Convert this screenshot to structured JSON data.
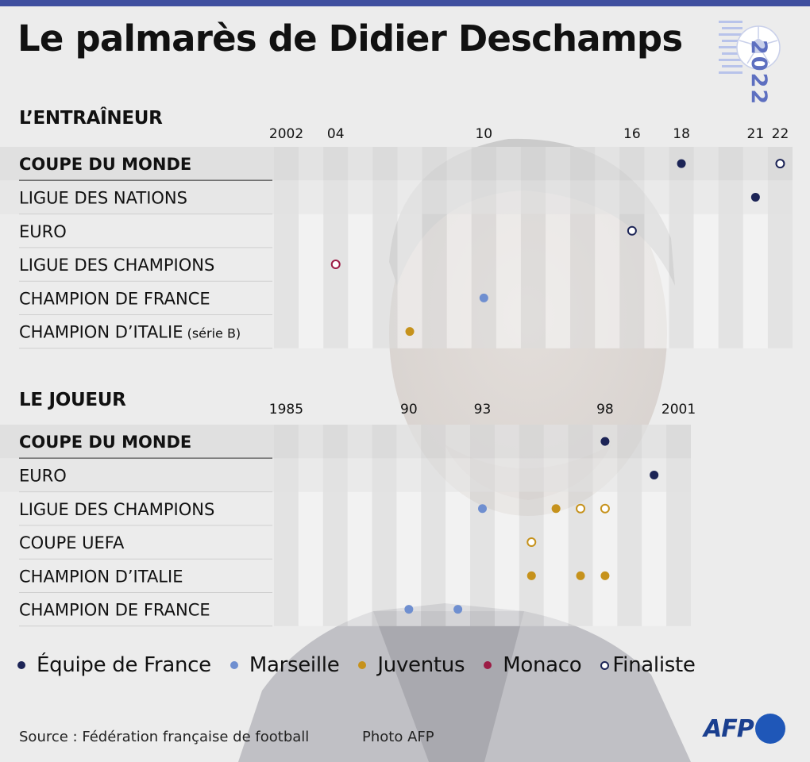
{
  "title": "Le palmarès de Didier Deschamps",
  "logo": {
    "year": "2022",
    "icon": "football-icon"
  },
  "colors": {
    "equipe_de_france": "#1c2456",
    "marseille": "#6f8fd0",
    "juventus": "#c6921c",
    "monaco": "#9c1c45",
    "finaliste_fill": "#ffffff"
  },
  "chart_data": [
    {
      "type": "scatter",
      "section": "L’ENTRAÎNEUR",
      "x_range": [
        2002,
        2022
      ],
      "tick_labels": [
        {
          "year": 2002,
          "label": "2002"
        },
        {
          "year": 2004,
          "label": "04"
        },
        {
          "year": 2010,
          "label": "10"
        },
        {
          "year": 2016,
          "label": "16"
        },
        {
          "year": 2018,
          "label": "18"
        },
        {
          "year": 2021,
          "label": "21"
        },
        {
          "year": 2022,
          "label": "22"
        }
      ],
      "rows": [
        {
          "label": "COUPE DU MONDE",
          "bold": true,
          "points": [
            {
              "year": 2018,
              "team": "equipe_de_france",
              "finaliste": false
            },
            {
              "year": 2022,
              "team": "equipe_de_france",
              "finaliste": true
            }
          ]
        },
        {
          "label": "LIGUE DES NATIONS",
          "points": [
            {
              "year": 2021,
              "team": "equipe_de_france",
              "finaliste": false
            }
          ]
        },
        {
          "label": "EURO",
          "points": [
            {
              "year": 2016,
              "team": "equipe_de_france",
              "finaliste": true
            }
          ]
        },
        {
          "label": "LIGUE DES CHAMPIONS",
          "points": [
            {
              "year": 2004,
              "team": "monaco",
              "finaliste": true
            }
          ]
        },
        {
          "label": "CHAMPION DE FRANCE",
          "points": [
            {
              "year": 2010,
              "team": "marseille",
              "finaliste": false
            }
          ]
        },
        {
          "label": "CHAMPION D’ITALIE",
          "note": "(série B)",
          "points": [
            {
              "year": 2007,
              "team": "juventus",
              "finaliste": false
            }
          ]
        }
      ]
    },
    {
      "type": "scatter",
      "section": "LE JOUEUR",
      "x_range": [
        1985,
        2001
      ],
      "tick_labels": [
        {
          "year": 1985,
          "label": "1985"
        },
        {
          "year": 1990,
          "label": "90"
        },
        {
          "year": 1993,
          "label": "93"
        },
        {
          "year": 1998,
          "label": "98"
        },
        {
          "year": 2001,
          "label": "2001"
        }
      ],
      "rows": [
        {
          "label": "COUPE DU MONDE",
          "bold": true,
          "points": [
            {
              "year": 1998,
              "team": "equipe_de_france",
              "finaliste": false
            }
          ]
        },
        {
          "label": "EURO",
          "points": [
            {
              "year": 2000,
              "team": "equipe_de_france",
              "finaliste": false
            }
          ]
        },
        {
          "label": "LIGUE DES CHAMPIONS",
          "points": [
            {
              "year": 1993,
              "team": "marseille",
              "finaliste": false
            },
            {
              "year": 1996,
              "team": "juventus",
              "finaliste": false
            },
            {
              "year": 1997,
              "team": "juventus",
              "finaliste": true
            },
            {
              "year": 1998,
              "team": "juventus",
              "finaliste": true
            }
          ]
        },
        {
          "label": "COUPE UEFA",
          "points": [
            {
              "year": 1995,
              "team": "juventus",
              "finaliste": true
            }
          ]
        },
        {
          "label": "CHAMPION D’ITALIE",
          "points": [
            {
              "year": 1995,
              "team": "juventus",
              "finaliste": false
            },
            {
              "year": 1997,
              "team": "juventus",
              "finaliste": false
            },
            {
              "year": 1998,
              "team": "juventus",
              "finaliste": false
            }
          ]
        },
        {
          "label": "CHAMPION DE FRANCE",
          "points": [
            {
              "year": 1990,
              "team": "marseille",
              "finaliste": false
            },
            {
              "year": 1992,
              "team": "marseille",
              "finaliste": false
            }
          ]
        }
      ]
    }
  ],
  "legend": [
    {
      "key": "equipe_de_france",
      "label": "Équipe de France"
    },
    {
      "key": "marseille",
      "label": "Marseille"
    },
    {
      "key": "juventus",
      "label": "Juventus"
    },
    {
      "key": "monaco",
      "label": "Monaco"
    },
    {
      "key": "finaliste",
      "label": "Finaliste"
    }
  ],
  "source": "Source : Fédération française de football",
  "photo_credit": "Photo AFP",
  "afp_logo": "AFP"
}
